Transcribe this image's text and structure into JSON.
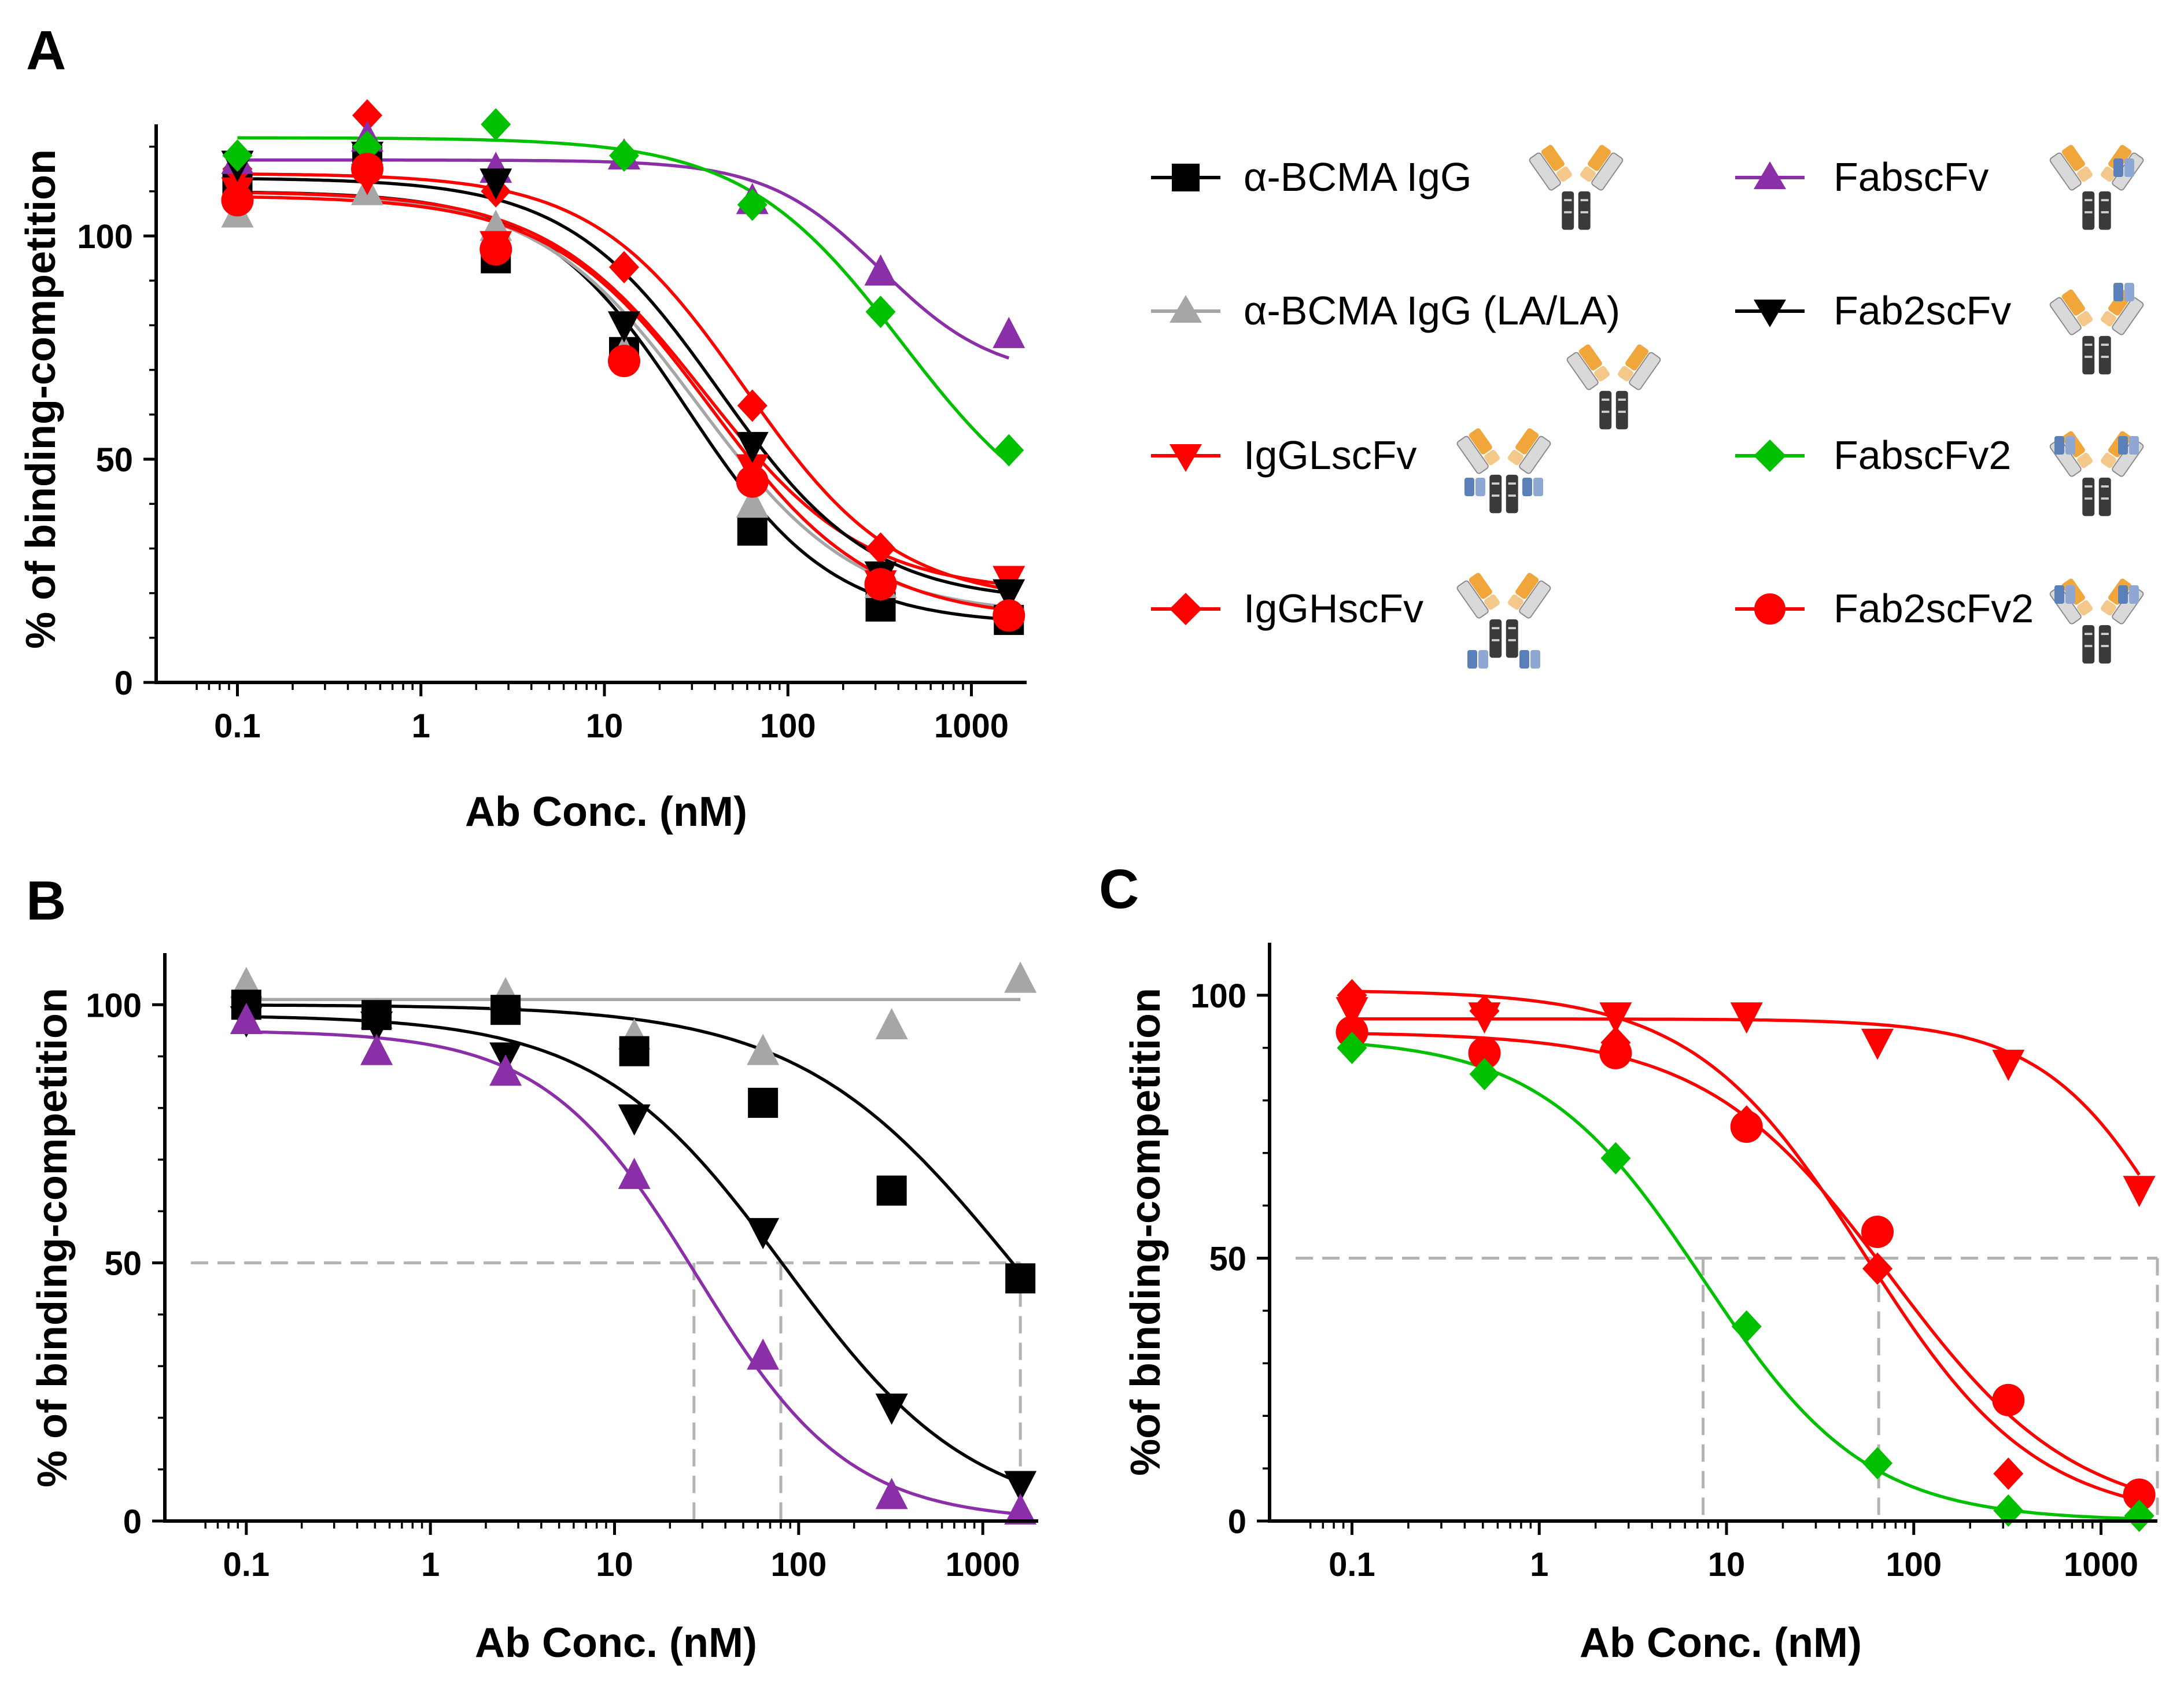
{
  "chart_data": [
    {
      "panel": "A",
      "type": "line",
      "xscale": "log",
      "xlabel": "Ab Conc. (nM)",
      "ylabel": "% of binding-competition",
      "xlim": [
        0.05,
        2000
      ],
      "ylim": [
        0,
        125
      ],
      "xticks": [
        0.1,
        1,
        10,
        100,
        1000
      ],
      "xtick_labels": [
        "0.1",
        "1",
        "10",
        "100",
        "1000"
      ],
      "yticks": [
        0,
        50,
        100
      ],
      "ytick_labels": [
        "0",
        "50",
        "100"
      ],
      "x": [
        0.1,
        0.51,
        2.56,
        12.8,
        64,
        320,
        1600
      ],
      "legend_position": "right",
      "series": [
        {
          "name": "α-BCMA IgG",
          "color": "#000000",
          "marker": "square",
          "values": [
            111,
            117,
            95,
            74,
            34,
            17,
            14
          ],
          "fit": {
            "top": 110,
            "bottom": 13,
            "ic50": 28,
            "hill": 1.1
          }
        },
        {
          "name": "α-BCMA IgG (LA/LA)",
          "color": "#a6a6a6",
          "marker": "triangle-up",
          "values": [
            105,
            110,
            102,
            74,
            40,
            22,
            17
          ],
          "fit": {
            "top": 110,
            "bottom": 15,
            "ic50": 32,
            "hill": 1.0
          }
        },
        {
          "name": "IgGLscFv",
          "color": "#ff0000",
          "marker": "triangle-down",
          "values": [
            110,
            113,
            98,
            80,
            48,
            22,
            23
          ],
          "fit": {
            "top": 110,
            "bottom": 20,
            "ic50": 35,
            "hill": 1.0
          }
        },
        {
          "name": "IgGHscFv",
          "color": "#ff0000",
          "marker": "diamond",
          "values": [
            115,
            127,
            110,
            93,
            62,
            30,
            16
          ],
          "fit": {
            "top": 114,
            "bottom": 18,
            "ic50": 58,
            "hill": 1.05
          }
        },
        {
          "name": "FabscFv",
          "color": "#8b2fa8",
          "marker": "triangle-up",
          "values": [
            117,
            122,
            115,
            118,
            108,
            92,
            78
          ],
          "fit": {
            "top": 117,
            "bottom": 68,
            "ic50": 320,
            "hill": 1.4
          }
        },
        {
          "name": "Fab2scFv",
          "color": "#000000",
          "marker": "triangle-down",
          "values": [
            116,
            118,
            112,
            80,
            53,
            24,
            20
          ],
          "fit": {
            "top": 113,
            "bottom": 18,
            "ic50": 42,
            "hill": 1.05
          }
        },
        {
          "name": "FabscFv2",
          "color": "#00c000",
          "marker": "diamond",
          "values": [
            118,
            120,
            125,
            118,
            107,
            83,
            52
          ],
          "fit": {
            "top": 122,
            "bottom": 30,
            "ic50": 420,
            "hill": 1.0
          }
        },
        {
          "name": "Fab2scFv2",
          "color": "#ff0000",
          "marker": "circle",
          "values": [
            108,
            115,
            97,
            72,
            45,
            22,
            15
          ],
          "fit": {
            "top": 109,
            "bottom": 14,
            "ic50": 38,
            "hill": 1.0
          }
        }
      ]
    },
    {
      "panel": "B",
      "type": "line",
      "xscale": "log",
      "xlabel": "Ab Conc. (nM)",
      "ylabel": "% of binding-competition",
      "xlim": [
        0.05,
        2000
      ],
      "ylim": [
        0,
        110
      ],
      "xticks": [
        0.1,
        1,
        10,
        100,
        1000
      ],
      "xtick_labels": [
        "0.1",
        "1",
        "10",
        "100",
        "1000"
      ],
      "yticks": [
        0,
        50,
        100
      ],
      "ytick_labels": [
        "0",
        "50",
        "100"
      ],
      "x": [
        0.1,
        0.51,
        2.56,
        12.8,
        64,
        320,
        1600
      ],
      "reference_y": 50,
      "reference_x": [
        27,
        80,
        1600
      ],
      "series": [
        {
          "name": "α-BCMA IgG (LA/LA)",
          "color": "#a6a6a6",
          "marker": "triangle-up",
          "values": [
            104,
            98,
            102,
            94,
            91,
            96,
            105
          ],
          "fit": {
            "top": 101,
            "bottom": 101,
            "ic50": 100,
            "hill": 1.0
          }
        },
        {
          "name": "α-BCMA IgG",
          "color": "#000000",
          "marker": "square",
          "values": [
            100,
            98,
            99,
            91,
            81,
            64,
            47
          ],
          "fit": {
            "top": 100,
            "bottom": 0,
            "ic50": 1450,
            "hill": 0.75
          }
        },
        {
          "name": "Fab2scFv",
          "color": "#000000",
          "marker": "triangle-down",
          "values": [
            97,
            96,
            90,
            78,
            56,
            22,
            7
          ],
          "fit": {
            "top": 98,
            "bottom": 0,
            "ic50": 85,
            "hill": 0.85
          }
        },
        {
          "name": "FabscFv",
          "color": "#8b2fa8",
          "marker": "triangle-up",
          "values": [
            97,
            91,
            87,
            67,
            32,
            5,
            2
          ],
          "fit": {
            "top": 95,
            "bottom": 0,
            "ic50": 28,
            "hill": 1.05
          }
        }
      ]
    },
    {
      "panel": "C",
      "type": "line",
      "xscale": "log",
      "xlabel": "Ab Conc. (nM)",
      "ylabel": "%of binding-competition",
      "xlim": [
        0.05,
        2000
      ],
      "ylim": [
        0,
        110
      ],
      "xticks": [
        0.1,
        1,
        10,
        100,
        1000
      ],
      "xtick_labels": [
        "0.1",
        "1",
        "10",
        "100",
        "1000"
      ],
      "yticks": [
        0,
        50,
        100
      ],
      "ytick_labels": [
        "0",
        "50",
        "100"
      ],
      "x": [
        0.1,
        0.51,
        2.56,
        12.8,
        64,
        320,
        1600
      ],
      "reference_y": 50,
      "reference_x": [
        7.5,
        65,
        2000
      ],
      "series": [
        {
          "name": "IgGLscFv",
          "color": "#ff0000",
          "marker": "triangle-down",
          "values": [
            97,
            96,
            96,
            96,
            91,
            87,
            63
          ],
          "fit": {
            "top": 95.5,
            "bottom": 0,
            "ic50": 3200,
            "hill": 1.15
          }
        },
        {
          "name": "IgGHscFv",
          "color": "#ff0000",
          "marker": "diamond",
          "values": [
            100,
            97,
            91,
            76,
            48,
            9,
            1
          ],
          "fit": {
            "top": 101,
            "bottom": 0,
            "ic50": 55,
            "hill": 0.95
          }
        },
        {
          "name": "Fab2scFv2",
          "color": "#ff0000",
          "marker": "circle",
          "values": [
            93,
            89,
            89,
            75,
            55,
            23,
            5
          ],
          "fit": {
            "top": 93,
            "bottom": 0,
            "ic50": 75,
            "hill": 0.88
          }
        },
        {
          "name": "FabscFv2",
          "color": "#00c000",
          "marker": "diamond",
          "values": [
            90,
            85,
            69,
            37,
            11,
            2,
            1
          ],
          "fit": {
            "top": 92,
            "bottom": 0,
            "ic50": 7.5,
            "hill": 1.0
          }
        }
      ]
    }
  ]
}
